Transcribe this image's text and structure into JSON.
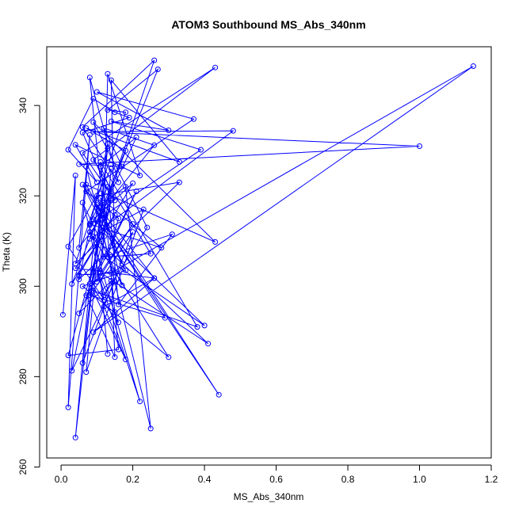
{
  "chart_data": {
    "type": "line",
    "title": "ATOM3 Southbound MS_Abs_340nm",
    "xlabel": "MS_Abs_340nm",
    "ylabel": "Theta (K)",
    "xlim": [
      -0.04,
      1.2
    ],
    "ylim": [
      262,
      353
    ],
    "x_ticks": [
      0.0,
      0.2,
      0.4,
      0.6,
      0.8,
      1.0,
      1.2
    ],
    "x_tick_labels": [
      "0.0",
      "0.2",
      "0.4",
      "0.6",
      "0.8",
      "1.0",
      "1.2"
    ],
    "y_ticks": [
      260,
      280,
      300,
      320,
      340
    ],
    "y_tick_labels": [
      "260",
      "280",
      "300",
      "320",
      "340"
    ],
    "grid": false,
    "legend": "none",
    "markers": "open-circle",
    "color": "#0000ff",
    "series": [
      {
        "x": [
          0.005,
          0.04,
          0.02,
          0.08,
          0.05,
          0.12,
          0.03,
          0.15,
          0.07,
          0.25,
          0.18,
          0.1,
          0.04,
          0.13,
          0.06,
          0.2,
          0.09,
          0.38,
          0.11,
          0.16,
          0.02,
          0.14,
          0.08,
          0.29,
          0.12,
          0.44,
          0.06,
          0.17,
          0.1,
          0.33,
          0.05,
          0.13,
          0.07,
          0.23,
          0.09,
          0.41,
          0.11,
          0.14,
          0.02,
          0.12,
          0.08,
          0.3,
          0.06,
          0.18,
          0.1,
          0.26,
          0.04,
          0.15,
          0.03,
          0.11,
          0.07,
          0.43,
          0.09,
          0.24,
          0.12,
          0.14,
          0.05,
          0.21,
          0.1,
          0.22,
          0.06,
          0.17,
          0.11,
          0.28,
          0.08,
          0.13,
          0.16,
          0.31,
          0.12,
          0.4,
          0.09,
          0.2,
          0.05,
          0.15,
          0.14,
          0.33,
          0.07,
          0.18,
          0.11,
          0.26,
          0.06,
          0.16,
          0.08,
          0.12,
          0.13,
          0.22,
          0.04,
          0.1,
          0.02,
          0.09,
          0.15,
          0.19,
          0.06,
          0.14,
          0.11,
          0.48,
          0.09,
          1.0,
          0.05,
          0.17,
          0.12,
          0.26,
          0.08,
          0.39,
          0.14,
          0.3,
          0.1,
          0.37,
          0.07,
          0.16,
          0.13,
          0.25,
          0.09,
          0.43,
          0.06,
          0.15,
          0.11,
          0.21,
          0.08,
          0.27,
          0.13,
          0.18,
          0.04,
          0.12,
          0.1,
          0.2,
          0.07,
          0.15,
          0.14,
          1.15,
          0.09,
          0.26,
          0.12,
          0.18,
          0.08,
          0.16,
          0.15,
          0.11,
          0.13
        ],
        "y": [
          293.7,
          324.5,
          273.2,
          333.5,
          308.5,
          316.0,
          281.3,
          301.0,
          326.5,
          268.5,
          322.0,
          317.5,
          266.5,
          330.5,
          283.0,
          312.0,
          299.0,
          291.0,
          327.5,
          286.0,
          284.7,
          319.0,
          298.0,
          293.0,
          314.0,
          276.0,
          322.5,
          305.0,
          320.0,
          323.0,
          301.5,
          331.5,
          281.0,
          317.0,
          311.0,
          287.3,
          303.0,
          326.0,
          308.8,
          297.0,
          312.0,
          284.3,
          300.0,
          303.5,
          318.0,
          301.8,
          304.0,
          315.8,
          300.5,
          316.5,
          322.5,
          309.8,
          336.3,
          313.0,
          298.0,
          301.2,
          294.0,
          321.0,
          303.5,
          274.5,
          318.5,
          300.2,
          319.5,
          308.5,
          313.8,
          322.0,
          296.0,
          311.5,
          306.5,
          291.3,
          314.8,
          322.8,
          302.5,
          303.0,
          345.6,
          327.5,
          335.0,
          330.0,
          315.0,
          350.0,
          335.2,
          323.0,
          346.2,
          315.2,
          347.0,
          324.5,
          331.3,
          323.0,
          330.2,
          341.5,
          338.5,
          337.3,
          334.0,
          319.5,
          312.5,
          334.4,
          334.2,
          331.0,
          327.0,
          326.5,
          335.0,
          331.2,
          313.5,
          330.2,
          336.5,
          334.5,
          343.0,
          337.0,
          321.0,
          315.0,
          306.5,
          307.2,
          328.0,
          348.4,
          329.5,
          319.0,
          326.5,
          333.0,
          310.5,
          348.0,
          339.0,
          338.5,
          305.0,
          311.0,
          301.0,
          313.8,
          298.0,
          284.3,
          303.0,
          348.7,
          289.8,
          301.8,
          295.5,
          283.8,
          300.5,
          292.0,
          294.3,
          302.0,
          285.0
        ]
      }
    ]
  }
}
